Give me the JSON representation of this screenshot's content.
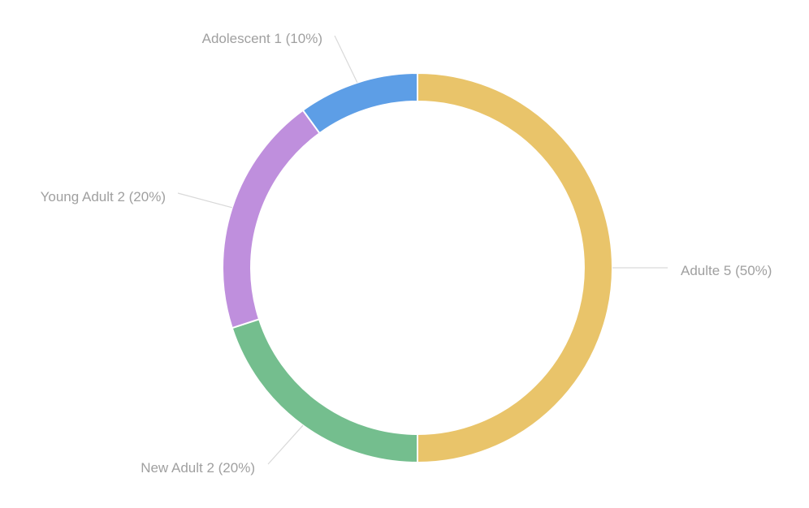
{
  "chart_data": {
    "type": "pie",
    "variant": "donut",
    "slices": [
      {
        "label": "Adulte",
        "value": 5,
        "percent": "50%",
        "color": "#E9C46A"
      },
      {
        "label": "New Adult",
        "value": 2,
        "percent": "20%",
        "color": "#74BE8E"
      },
      {
        "label": "Young Adult",
        "value": 2,
        "percent": "20%",
        "color": "#BF8FDD"
      },
      {
        "label": "Adolescent",
        "value": 1,
        "percent": "10%",
        "color": "#5D9EE6"
      }
    ],
    "labels": [
      "Adulte  5 (50%)",
      "New Adult  2 (20%)",
      "Young Adult  2 (20%)",
      "Adolescent  1 (10%)"
    ],
    "legend": "none"
  }
}
